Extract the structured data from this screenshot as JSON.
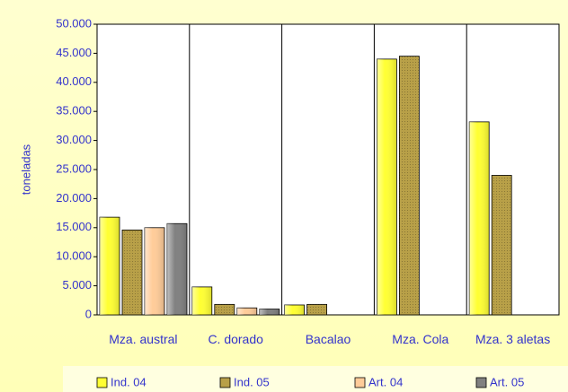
{
  "chart_data": {
    "type": "bar",
    "y_label": "toneladas",
    "categories": [
      "Mza. austral",
      "C. dorado",
      "Bacalao",
      "Mza. Cola",
      "Mza. 3 aletas"
    ],
    "series": [
      {
        "name": "Ind. 04",
        "color": "#ffff33",
        "values": [
          16800,
          4800,
          1700,
          44000,
          33200
        ]
      },
      {
        "name": "Ind. 05",
        "color": "#b8a048",
        "values": [
          14600,
          1800,
          1800,
          44500,
          24000
        ]
      },
      {
        "name": "Art. 04",
        "color": "#ffcc99",
        "values": [
          15000,
          1200,
          null,
          null,
          null
        ]
      },
      {
        "name": "Art. 05",
        "color": "#808080",
        "values": [
          15700,
          1000,
          null,
          null,
          null
        ]
      }
    ],
    "ylim": [
      0,
      50000
    ],
    "yticks": [
      0,
      {
        "value": 5000,
        "label": "5.000"
      },
      {
        "value": 10000,
        "label": "10.000"
      },
      {
        "value": 15000,
        "label": "15.000"
      },
      {
        "value": 20000,
        "label": "20.000"
      },
      {
        "value": 25000,
        "label": "25.000"
      },
      {
        "value": 30000,
        "label": "30.000"
      },
      {
        "value": 35000,
        "label": "35.000"
      },
      {
        "value": 40000,
        "label": "40.000"
      },
      {
        "value": 45000,
        "label": "45.000"
      },
      {
        "value": 50000,
        "label": "50.000"
      }
    ],
    "legend": "bottom"
  }
}
